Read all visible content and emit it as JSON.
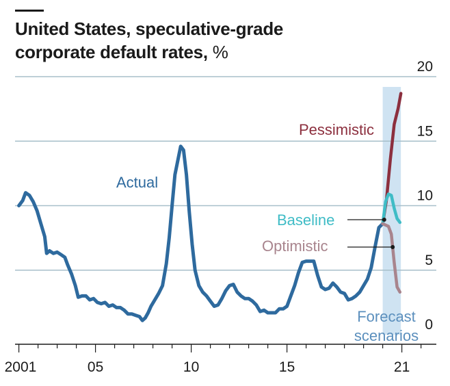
{
  "header": {
    "title": "United States, speculative-grade corporate default rates,",
    "unit": "%"
  },
  "chart_data": {
    "type": "line",
    "title": "United States, speculative-grade corporate default rates, %",
    "xlabel": "",
    "ylabel": "",
    "xlim": [
      2000.8,
      2022.8
    ],
    "ylim": [
      0,
      20
    ],
    "x_ticks": [
      {
        "value": 2001,
        "label": "2001"
      },
      {
        "value": 2005,
        "label": "05"
      },
      {
        "value": 2010,
        "label": "10"
      },
      {
        "value": 2015,
        "label": "15"
      },
      {
        "value": 2021,
        "label": "21"
      }
    ],
    "y_ticks": [
      {
        "value": 0,
        "label": "0"
      },
      {
        "value": 5,
        "label": "5"
      },
      {
        "value": 10,
        "label": "10"
      },
      {
        "value": 15,
        "label": "15"
      },
      {
        "value": 20,
        "label": "20"
      }
    ],
    "grid": "horizontal",
    "forecast_band": {
      "x_start": 2020.0,
      "x_end": 2020.95,
      "label": "Forecast scenarios"
    },
    "series": [
      {
        "name": "Actual",
        "color": "#2e6a9e",
        "points": [
          [
            2001.0,
            10.0
          ],
          [
            2001.2,
            10.4
          ],
          [
            2001.35,
            11.0
          ],
          [
            2001.55,
            10.8
          ],
          [
            2001.75,
            10.3
          ],
          [
            2001.95,
            9.6
          ],
          [
            2002.15,
            8.6
          ],
          [
            2002.35,
            7.6
          ],
          [
            2002.45,
            6.3
          ],
          [
            2002.6,
            6.5
          ],
          [
            2002.8,
            6.3
          ],
          [
            2003.0,
            6.4
          ],
          [
            2003.2,
            6.2
          ],
          [
            2003.4,
            6.0
          ],
          [
            2003.55,
            5.4
          ],
          [
            2003.75,
            4.7
          ],
          [
            2003.95,
            3.8
          ],
          [
            2004.1,
            2.9
          ],
          [
            2004.3,
            3.0
          ],
          [
            2004.5,
            3.0
          ],
          [
            2004.7,
            2.7
          ],
          [
            2004.9,
            2.8
          ],
          [
            2005.1,
            2.5
          ],
          [
            2005.3,
            2.4
          ],
          [
            2005.5,
            2.5
          ],
          [
            2005.7,
            2.2
          ],
          [
            2005.9,
            2.3
          ],
          [
            2006.1,
            2.1
          ],
          [
            2006.3,
            2.1
          ],
          [
            2006.5,
            1.9
          ],
          [
            2006.7,
            1.6
          ],
          [
            2006.9,
            1.6
          ],
          [
            2007.1,
            1.5
          ],
          [
            2007.3,
            1.4
          ],
          [
            2007.45,
            1.1
          ],
          [
            2007.6,
            1.3
          ],
          [
            2007.75,
            1.7
          ],
          [
            2007.9,
            2.2
          ],
          [
            2008.1,
            2.7
          ],
          [
            2008.3,
            3.2
          ],
          [
            2008.5,
            3.8
          ],
          [
            2008.7,
            5.5
          ],
          [
            2008.85,
            7.5
          ],
          [
            2009.0,
            10.0
          ],
          [
            2009.15,
            12.4
          ],
          [
            2009.3,
            13.5
          ],
          [
            2009.45,
            14.6
          ],
          [
            2009.6,
            14.3
          ],
          [
            2009.75,
            12.4
          ],
          [
            2009.9,
            9.5
          ],
          [
            2010.05,
            7.0
          ],
          [
            2010.2,
            5.0
          ],
          [
            2010.4,
            3.8
          ],
          [
            2010.6,
            3.3
          ],
          [
            2010.8,
            3.0
          ],
          [
            2011.0,
            2.6
          ],
          [
            2011.2,
            2.2
          ],
          [
            2011.4,
            2.3
          ],
          [
            2011.6,
            2.8
          ],
          [
            2011.8,
            3.4
          ],
          [
            2012.0,
            3.8
          ],
          [
            2012.2,
            3.9
          ],
          [
            2012.4,
            3.3
          ],
          [
            2012.6,
            3.0
          ],
          [
            2012.8,
            2.8
          ],
          [
            2013.0,
            2.8
          ],
          [
            2013.2,
            2.6
          ],
          [
            2013.4,
            2.3
          ],
          [
            2013.6,
            1.8
          ],
          [
            2013.8,
            1.9
          ],
          [
            2014.0,
            1.7
          ],
          [
            2014.2,
            1.7
          ],
          [
            2014.4,
            1.7
          ],
          [
            2014.6,
            2.0
          ],
          [
            2014.8,
            2.0
          ],
          [
            2015.0,
            2.2
          ],
          [
            2015.2,
            3.0
          ],
          [
            2015.4,
            3.8
          ],
          [
            2015.6,
            4.8
          ],
          [
            2015.8,
            5.6
          ],
          [
            2016.0,
            5.7
          ],
          [
            2016.2,
            5.7
          ],
          [
            2016.4,
            5.7
          ],
          [
            2016.6,
            4.6
          ],
          [
            2016.8,
            3.7
          ],
          [
            2017.0,
            3.5
          ],
          [
            2017.2,
            3.6
          ],
          [
            2017.4,
            4.0
          ],
          [
            2017.6,
            3.7
          ],
          [
            2017.8,
            3.3
          ],
          [
            2018.0,
            3.2
          ],
          [
            2018.2,
            2.7
          ],
          [
            2018.4,
            2.8
          ],
          [
            2018.6,
            3.0
          ],
          [
            2018.8,
            3.3
          ],
          [
            2019.0,
            3.8
          ],
          [
            2019.2,
            4.3
          ],
          [
            2019.4,
            5.2
          ],
          [
            2019.6,
            6.8
          ],
          [
            2019.8,
            8.3
          ],
          [
            2020.0,
            8.6
          ]
        ]
      },
      {
        "name": "Pessimistic",
        "color": "#8c2f3e",
        "points": [
          [
            2020.0,
            8.6
          ],
          [
            2020.2,
            10.5
          ],
          [
            2020.4,
            13.6
          ],
          [
            2020.6,
            16.3
          ],
          [
            2020.8,
            17.5
          ],
          [
            2020.95,
            18.7
          ]
        ]
      },
      {
        "name": "Baseline",
        "color": "#3fbcc6",
        "points": [
          [
            2020.0,
            8.6
          ],
          [
            2020.15,
            10.3
          ],
          [
            2020.3,
            10.9
          ],
          [
            2020.45,
            10.8
          ],
          [
            2020.6,
            9.8
          ],
          [
            2020.75,
            9.0
          ],
          [
            2020.9,
            8.7
          ]
        ]
      },
      {
        "name": "Optimistic",
        "color": "#a8848d",
        "points": [
          [
            2020.0,
            8.6
          ],
          [
            2020.15,
            8.5
          ],
          [
            2020.3,
            8.4
          ],
          [
            2020.45,
            7.8
          ],
          [
            2020.6,
            5.6
          ],
          [
            2020.75,
            3.7
          ],
          [
            2020.9,
            3.3
          ]
        ]
      }
    ],
    "annotations": [
      {
        "text": "Actual",
        "series": "Actual"
      },
      {
        "text": "Pessimistic",
        "series": "Pessimistic"
      },
      {
        "text": "Baseline",
        "series": "Baseline"
      },
      {
        "text": "Optimistic",
        "series": "Optimistic"
      },
      {
        "text": "Forecast",
        "series": "band"
      },
      {
        "text": "scenarios",
        "series": "band"
      }
    ]
  },
  "colors": {
    "grid": "#a7bfca",
    "axis": "#1a1a1a",
    "band": "#cfe3f2",
    "text": "#1a1a1a",
    "forecast_label": "#5b8fbd"
  }
}
